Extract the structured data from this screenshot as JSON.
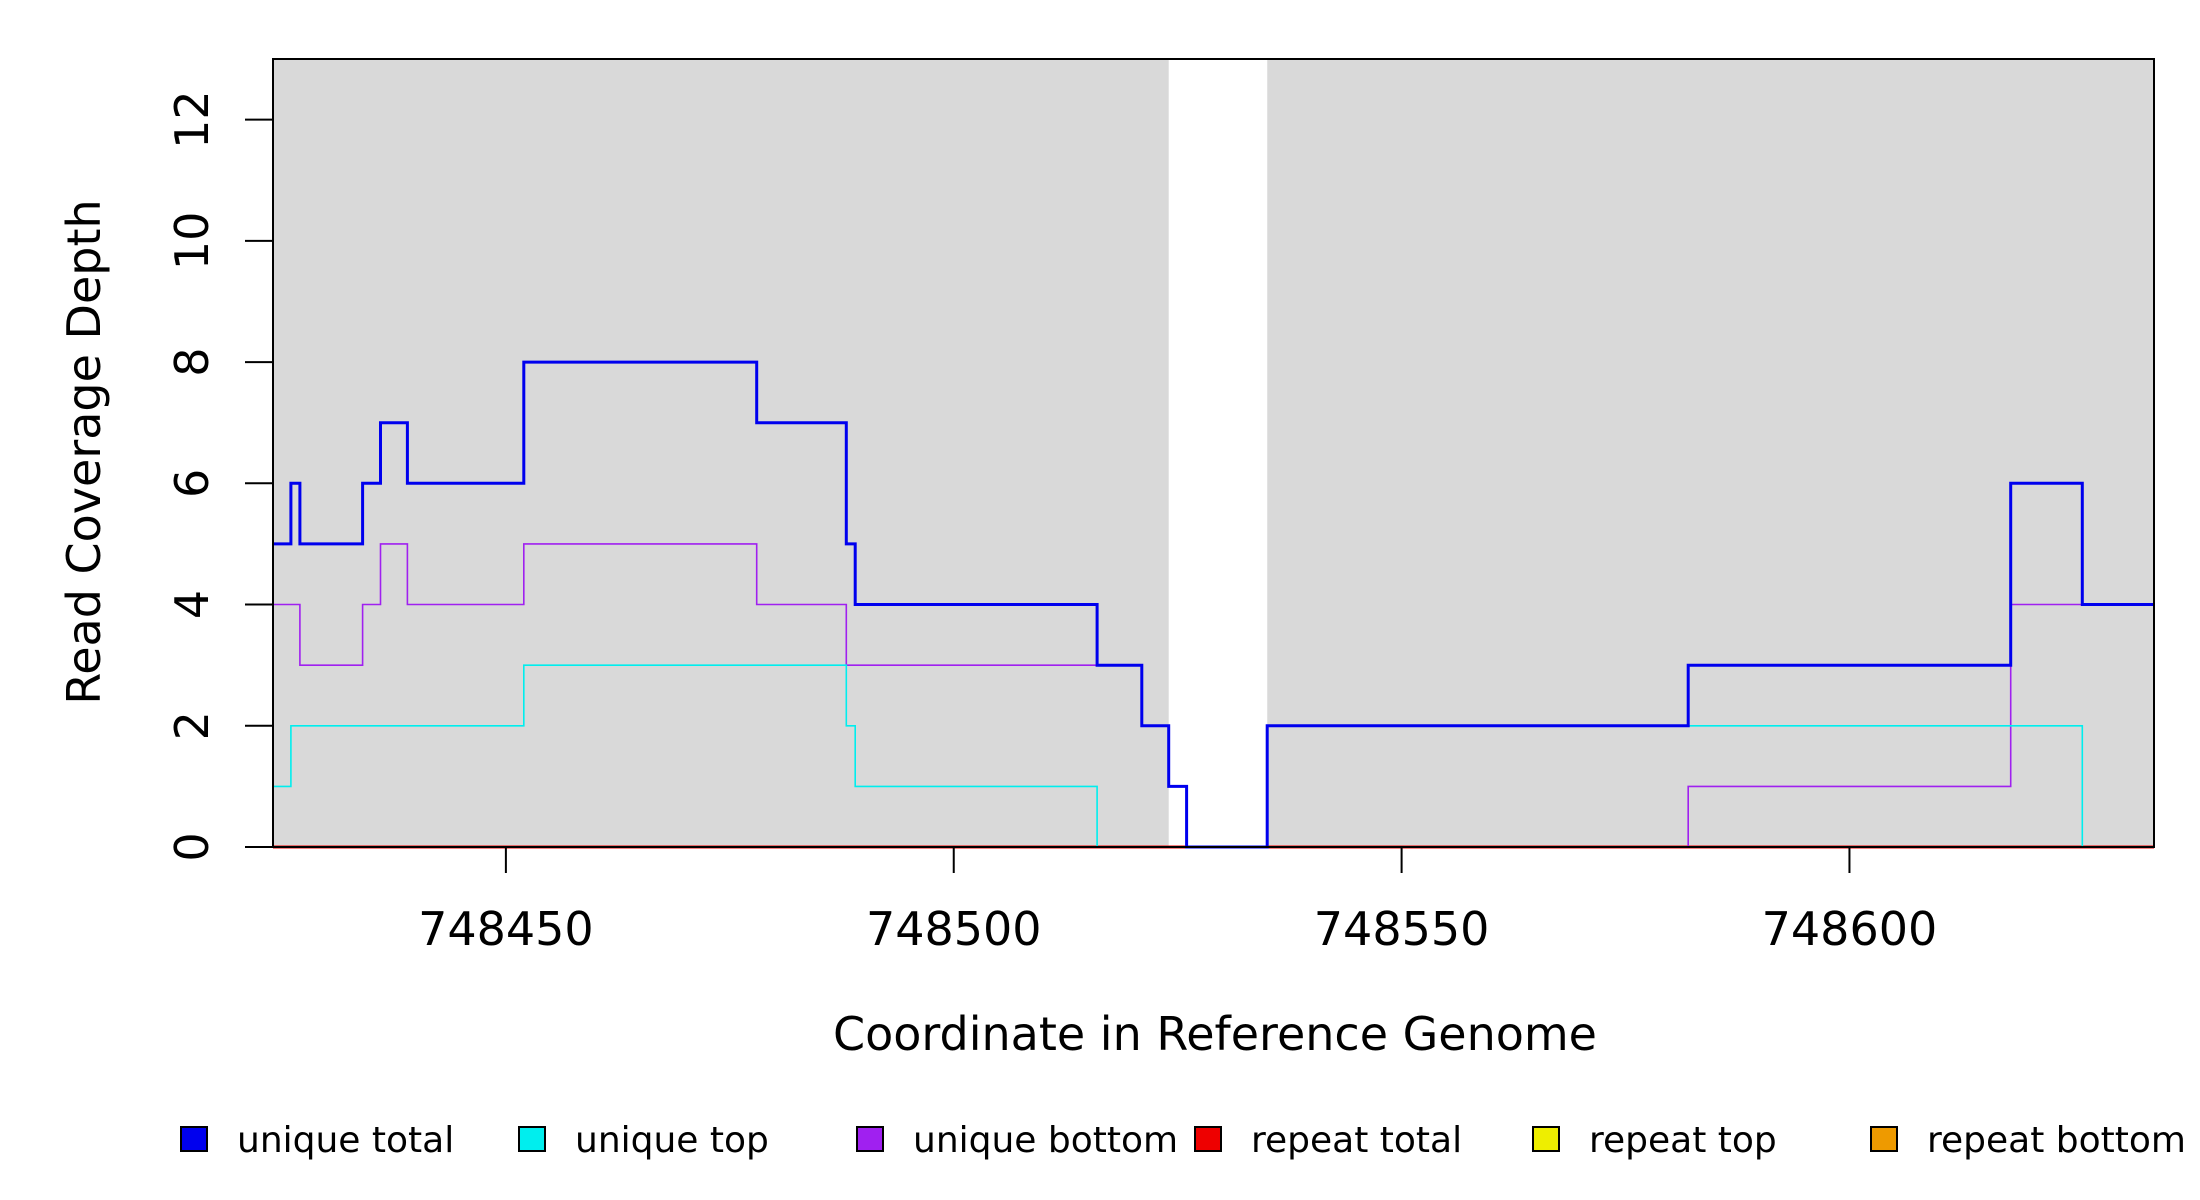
{
  "chart_data": {
    "type": "line",
    "xlabel": "Coordinate in Reference Genome",
    "ylabel": "Read Coverage Depth",
    "xlim": [
      748424,
      748634
    ],
    "ylim": [
      0,
      13
    ],
    "xticks": [
      748450,
      748500,
      748550,
      748600
    ],
    "xtick_labels": [
      "748450",
      "748500",
      "748550",
      "748600"
    ],
    "yticks": [
      0,
      2,
      4,
      6,
      8,
      10,
      12
    ],
    "ytick_labels": [
      "0",
      "2",
      "4",
      "6",
      "8",
      "10",
      "12"
    ],
    "background_color": "#d9d9d9",
    "unshaded_region": [
      748524,
      748535
    ],
    "grid": false,
    "legend_position": "bottom",
    "series": [
      {
        "name": "unique total",
        "color": "#0000ee",
        "points": [
          [
            748424,
            5
          ],
          [
            748426,
            6
          ],
          [
            748427,
            5
          ],
          [
            748434,
            6
          ],
          [
            748436,
            7
          ],
          [
            748439,
            6
          ],
          [
            748452,
            8
          ],
          [
            748478,
            7
          ],
          [
            748488,
            5
          ],
          [
            748489,
            4
          ],
          [
            748516,
            3
          ],
          [
            748521,
            2
          ],
          [
            748524,
            1
          ],
          [
            748526,
            0
          ],
          [
            748535,
            2
          ],
          [
            748582,
            3
          ],
          [
            748618,
            6
          ],
          [
            748626,
            4
          ],
          [
            748634,
            4
          ]
        ]
      },
      {
        "name": "unique top",
        "color": "#00eeee",
        "points": [
          [
            748424,
            1
          ],
          [
            748426,
            2
          ],
          [
            748452,
            3
          ],
          [
            748488,
            2
          ],
          [
            748489,
            1
          ],
          [
            748516,
            0
          ],
          [
            748535,
            2
          ],
          [
            748626,
            0
          ],
          [
            748634,
            0
          ]
        ]
      },
      {
        "name": "unique bottom",
        "color": "#a020f0",
        "points": [
          [
            748424,
            4
          ],
          [
            748427,
            3
          ],
          [
            748434,
            4
          ],
          [
            748436,
            5
          ],
          [
            748439,
            4
          ],
          [
            748452,
            5
          ],
          [
            748478,
            4
          ],
          [
            748488,
            3
          ],
          [
            748521,
            2
          ],
          [
            748524,
            1
          ],
          [
            748526,
            0
          ],
          [
            748582,
            1
          ],
          [
            748618,
            4
          ],
          [
            748634,
            4
          ]
        ]
      },
      {
        "name": "repeat total",
        "color": "#ee0000",
        "points": [
          [
            748424,
            0
          ],
          [
            748634,
            0
          ]
        ]
      },
      {
        "name": "repeat top",
        "color": "#eeee00",
        "points": [
          [
            748424,
            0
          ],
          [
            748634,
            0
          ]
        ]
      },
      {
        "name": "repeat bottom",
        "color": "#ee9a00",
        "points": [
          [
            748424,
            0
          ],
          [
            748634,
            0
          ]
        ]
      }
    ]
  }
}
